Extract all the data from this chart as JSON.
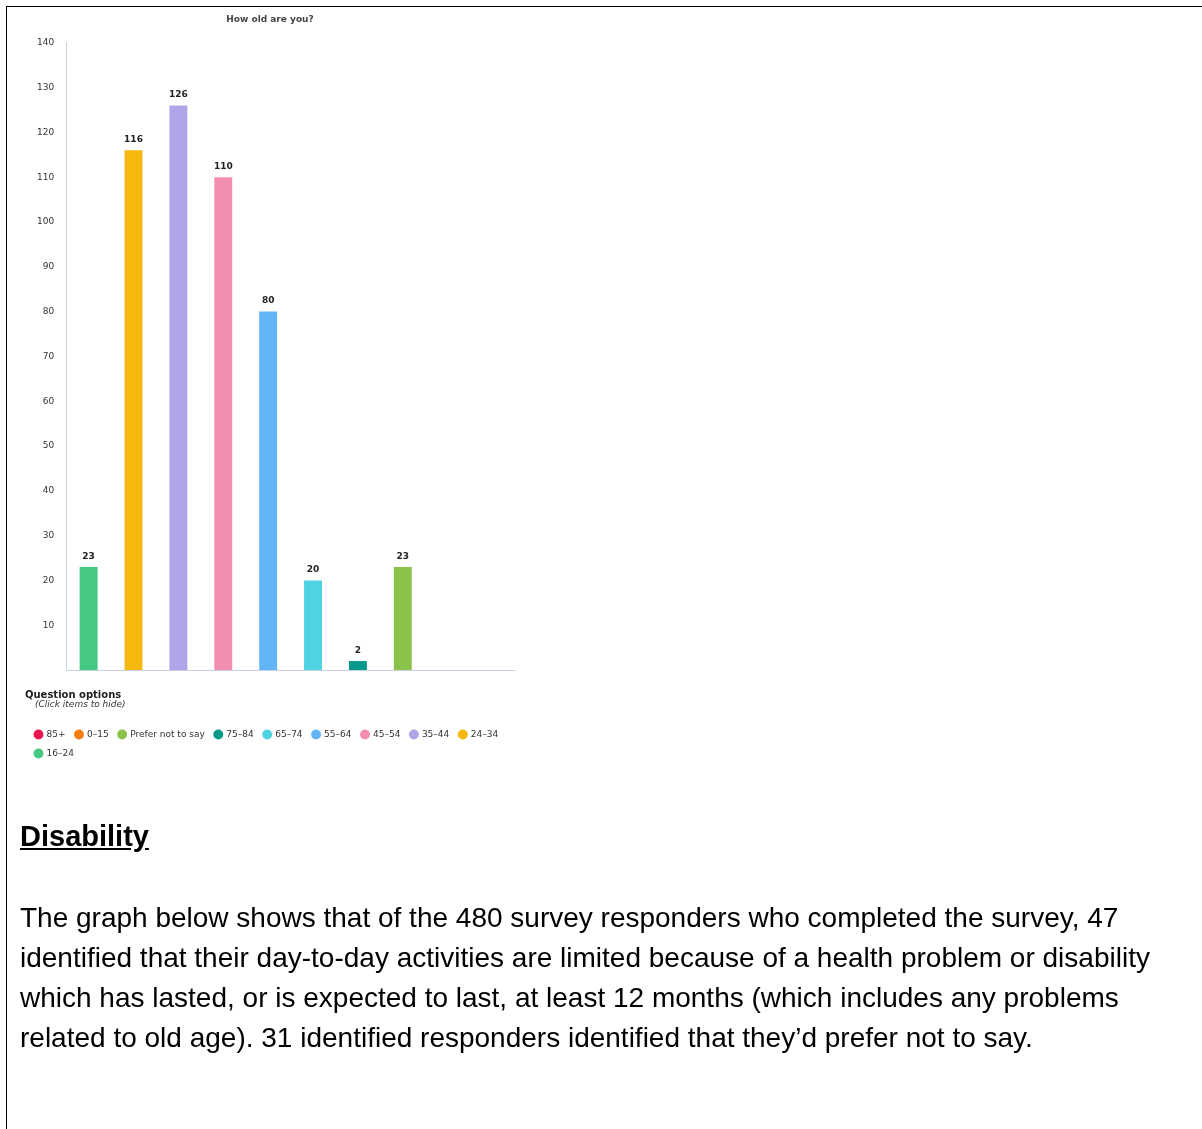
{
  "chart_data": {
    "type": "bar",
    "title": "How old are you?",
    "categories": [
      null,
      null,
      null,
      null,
      null,
      null,
      null,
      null,
      null,
      null
    ],
    "series": [
      {
        "name": "16–24",
        "color": "#45c882",
        "values": [
          23,
          null,
          null,
          null,
          null,
          null,
          null,
          null,
          null,
          null
        ]
      },
      {
        "name": "24–34",
        "color": "#f4b80e",
        "values": [
          null,
          116,
          null,
          null,
          null,
          null,
          null,
          null,
          null,
          null
        ]
      },
      {
        "name": "35–44",
        "color": "#afa5e8",
        "values": [
          null,
          null,
          126,
          null,
          null,
          null,
          null,
          null,
          null,
          null
        ]
      },
      {
        "name": "45–54",
        "color": "#f28fb1",
        "values": [
          null,
          null,
          null,
          110,
          null,
          null,
          null,
          null,
          null,
          null
        ]
      },
      {
        "name": "55–64",
        "color": "#63b4f7",
        "values": [
          null,
          null,
          null,
          null,
          80,
          null,
          null,
          null,
          null,
          null
        ]
      },
      {
        "name": "65–74",
        "color": "#4fd3e0",
        "values": [
          null,
          null,
          null,
          null,
          null,
          20,
          null,
          null,
          null,
          null
        ]
      },
      {
        "name": "75–84",
        "color": "#05998a",
        "values": [
          null,
          null,
          null,
          null,
          null,
          null,
          2,
          null,
          null,
          null
        ]
      },
      {
        "name": "Prefer not to say",
        "color": "#8bc34a",
        "values": [
          null,
          null,
          null,
          null,
          null,
          null,
          null,
          23,
          null,
          null
        ]
      },
      {
        "name": "0–15",
        "color": "#f57c14",
        "values": [
          null,
          null,
          null,
          null,
          null,
          null,
          null,
          null,
          null,
          null
        ]
      },
      {
        "name": "85+",
        "color": "#e8174f",
        "values": [
          null,
          null,
          null,
          null,
          null,
          null,
          null,
          null,
          null,
          null
        ]
      }
    ],
    "data_labels": true,
    "ylim": [
      0,
      140
    ],
    "yticks": [
      10,
      20,
      30,
      40,
      50,
      60,
      70,
      80,
      90,
      100,
      110,
      120,
      130,
      140
    ],
    "legend": "bottom",
    "tick_labels": "y",
    "legend_title": "Question options",
    "annotations": [
      "(Click items to hide)",
      "Disability",
      "The graph below shows that of the 480 survey responders who completed the survey, 47 identified that their day-to-day activities are limited because of a health problem or disability which has lasted, or is expected to last, at least 12 months (which includes any problems related to old age). 31 identified responders identified that they’d prefer not to say."
    ]
  }
}
